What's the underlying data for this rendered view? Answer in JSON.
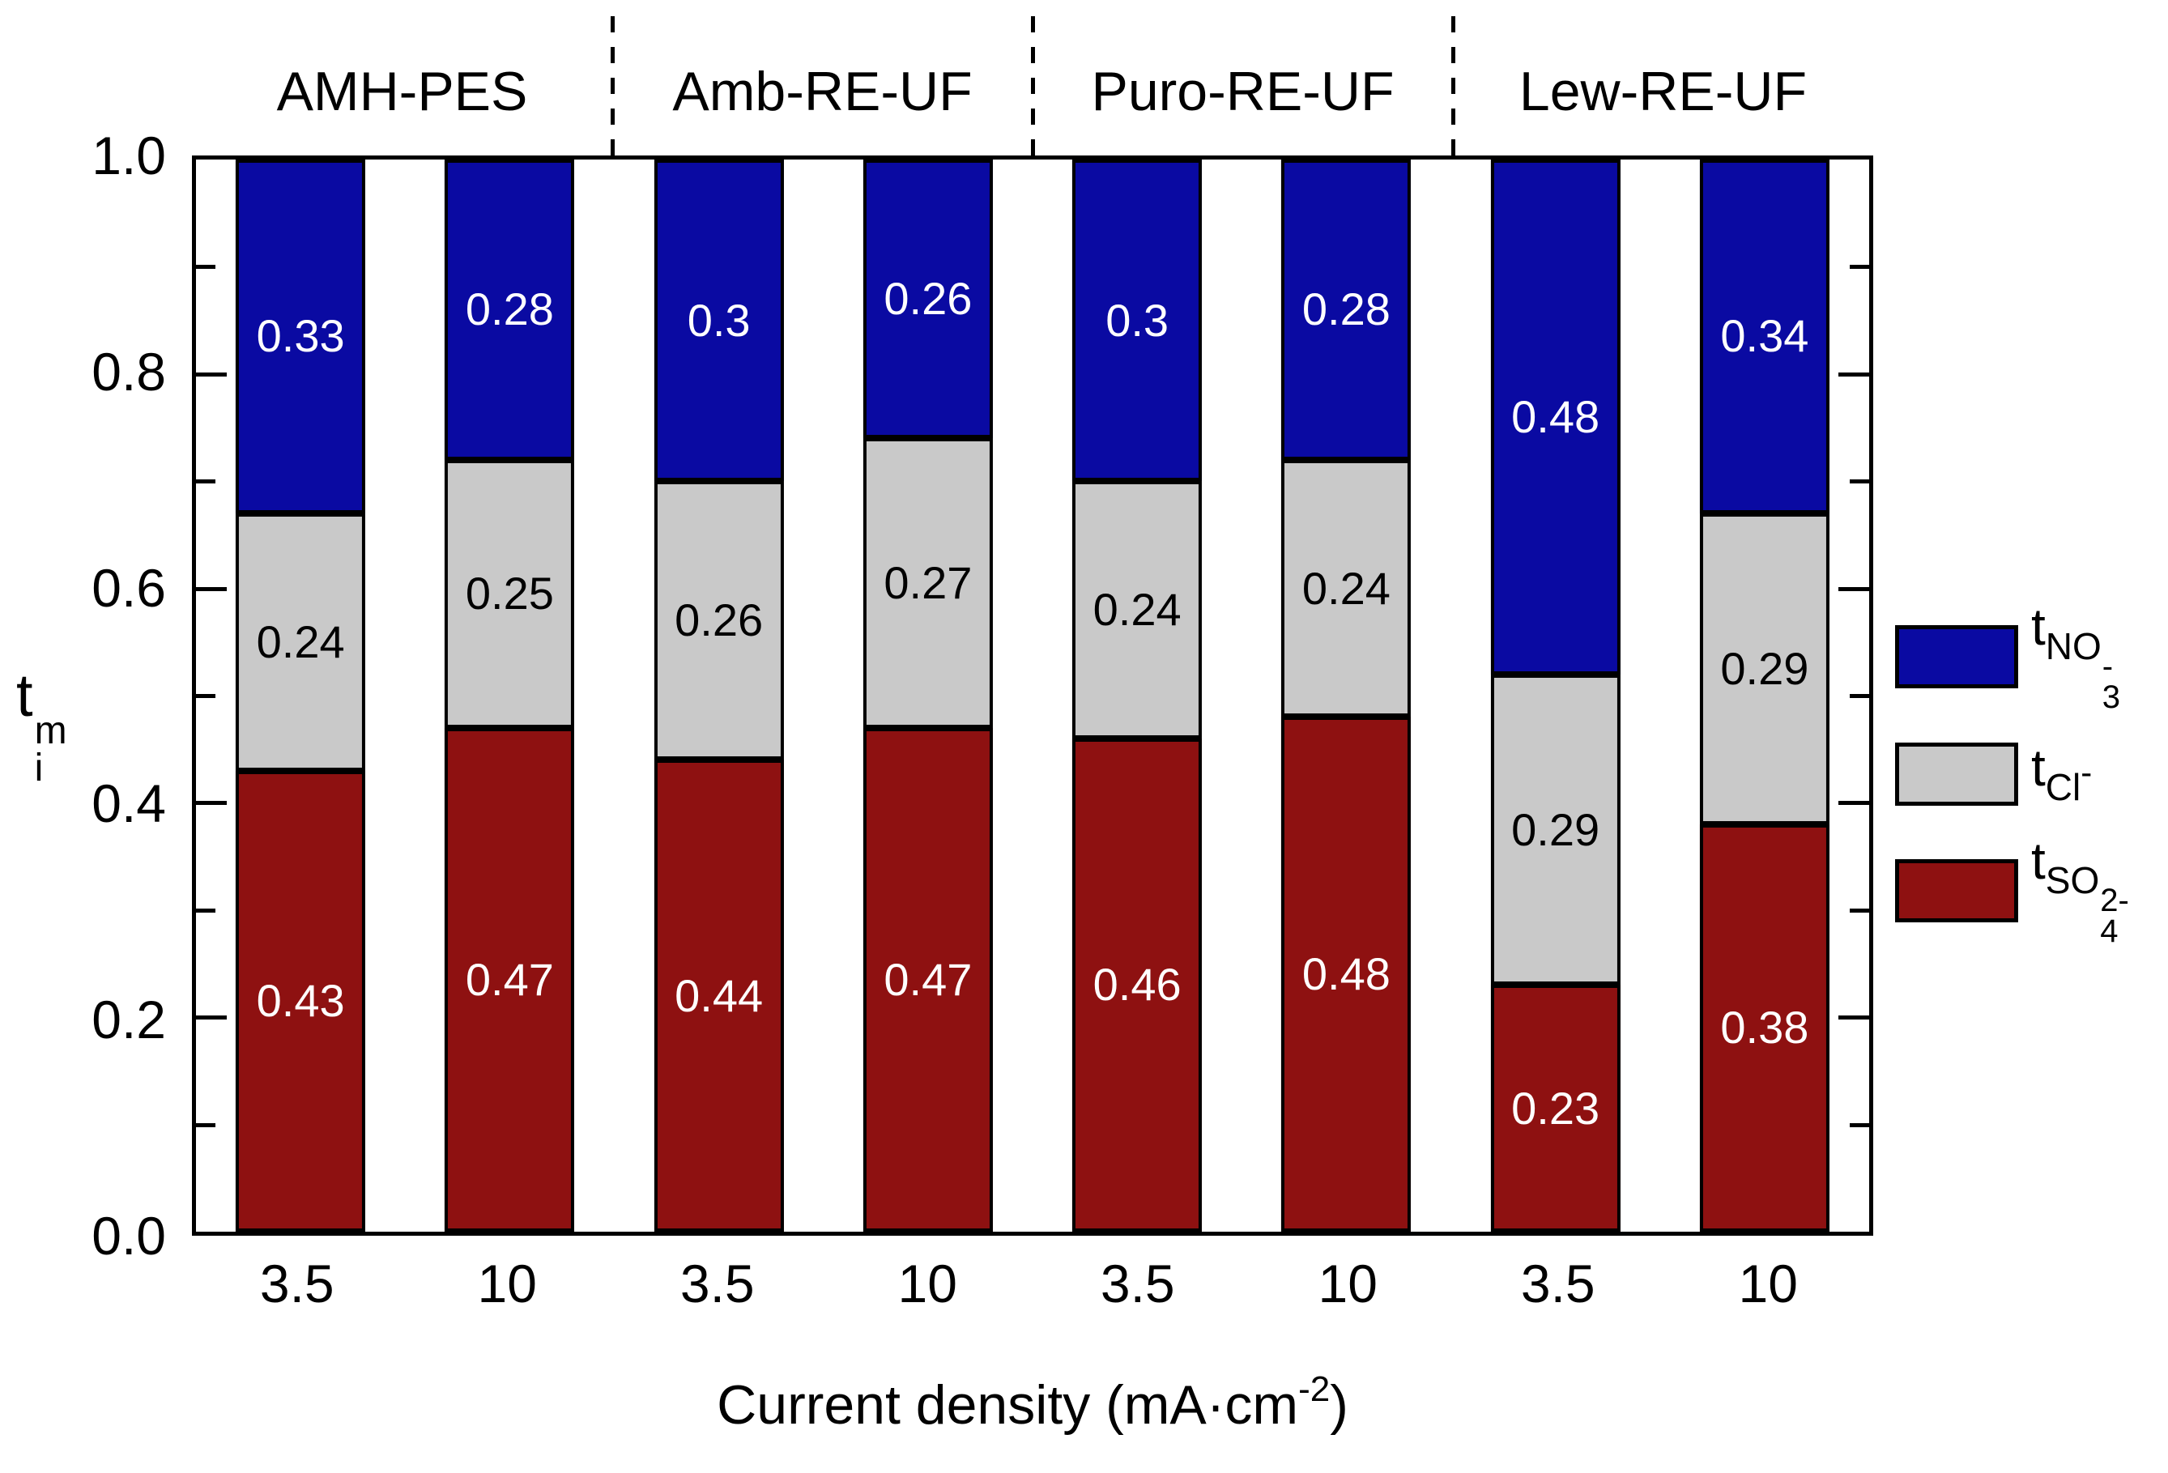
{
  "chart_data": {
    "type": "bar",
    "stacked": true,
    "title": "",
    "xlabel": "Current density (mA·cm^-2)",
    "ylabel": "t_i^m",
    "ylim": [
      0,
      1
    ],
    "grid": false,
    "legend_position": "right",
    "y_major_ticks": [
      "1.0",
      "0.8",
      "0.6",
      "0.4",
      "0.2",
      "0.0"
    ],
    "y_major_tick_values": [
      1.0,
      0.8,
      0.6,
      0.4,
      0.2,
      0.0
    ],
    "y_minor_tick_values": [
      0.9,
      0.7,
      0.5,
      0.3,
      0.1
    ],
    "groups": [
      "AMH-PES",
      "Amb-RE-UF",
      "Puro-RE-UF",
      "Lew-RE-UF"
    ],
    "x_categories": [
      "3.5",
      "10",
      "3.5",
      "10",
      "3.5",
      "10",
      "3.5",
      "10"
    ],
    "series": [
      {
        "name": "t_SO4^2-",
        "color": "#8e1111",
        "label_color": "#ffffff",
        "values": [
          0.43,
          0.47,
          0.44,
          0.47,
          0.46,
          0.48,
          0.23,
          0.38
        ],
        "labels": [
          "0.43",
          "0.47",
          "0.44",
          "0.47",
          "0.46",
          "0.48",
          "0.23",
          "0.38"
        ]
      },
      {
        "name": "t_Cl^-",
        "color": "#c9c9c9",
        "label_color": "#000000",
        "values": [
          0.24,
          0.25,
          0.26,
          0.27,
          0.24,
          0.24,
          0.29,
          0.29
        ],
        "labels": [
          "0.24",
          "0.25",
          "0.26",
          "0.27",
          "0.24",
          "0.24",
          "0.29",
          "0.29"
        ]
      },
      {
        "name": "t_NO3^-",
        "color": "#0a0aa2",
        "label_color": "#ffffff",
        "values": [
          0.33,
          0.28,
          0.3,
          0.26,
          0.3,
          0.28,
          0.48,
          0.34
        ],
        "labels": [
          "0.33",
          "0.28",
          "0.3",
          "0.26",
          "0.3",
          "0.28",
          "0.48",
          "0.34"
        ]
      }
    ]
  },
  "ui": {
    "y_axis_title": {
      "main": "t",
      "sup": "m",
      "sub": "i"
    },
    "x_axis_title": {
      "prefix": "Current density (mA·cm",
      "sup": "-2",
      "suffix": ")"
    },
    "legend": [
      {
        "name": "t_NO3-",
        "main": "t",
        "sub": "NO",
        "stack_top": "-",
        "stack_bottom": "3",
        "color": "#0a0aa2"
      },
      {
        "name": "t_Cl-",
        "main": "t",
        "sub": "Cl",
        "sup_after": "-",
        "color": "#c9c9c9"
      },
      {
        "name": "t_SO4-2",
        "main": "t",
        "sub": "SO",
        "stack_top": "2-",
        "stack_bottom": "4",
        "color": "#8e1111"
      }
    ],
    "colors": {
      "frame": "#000000",
      "background": "#ffffff",
      "nitrate_blue": "#0a0aa2",
      "chloride_gray": "#c9c9c9",
      "sulfate_red": "#8e1111"
    }
  }
}
